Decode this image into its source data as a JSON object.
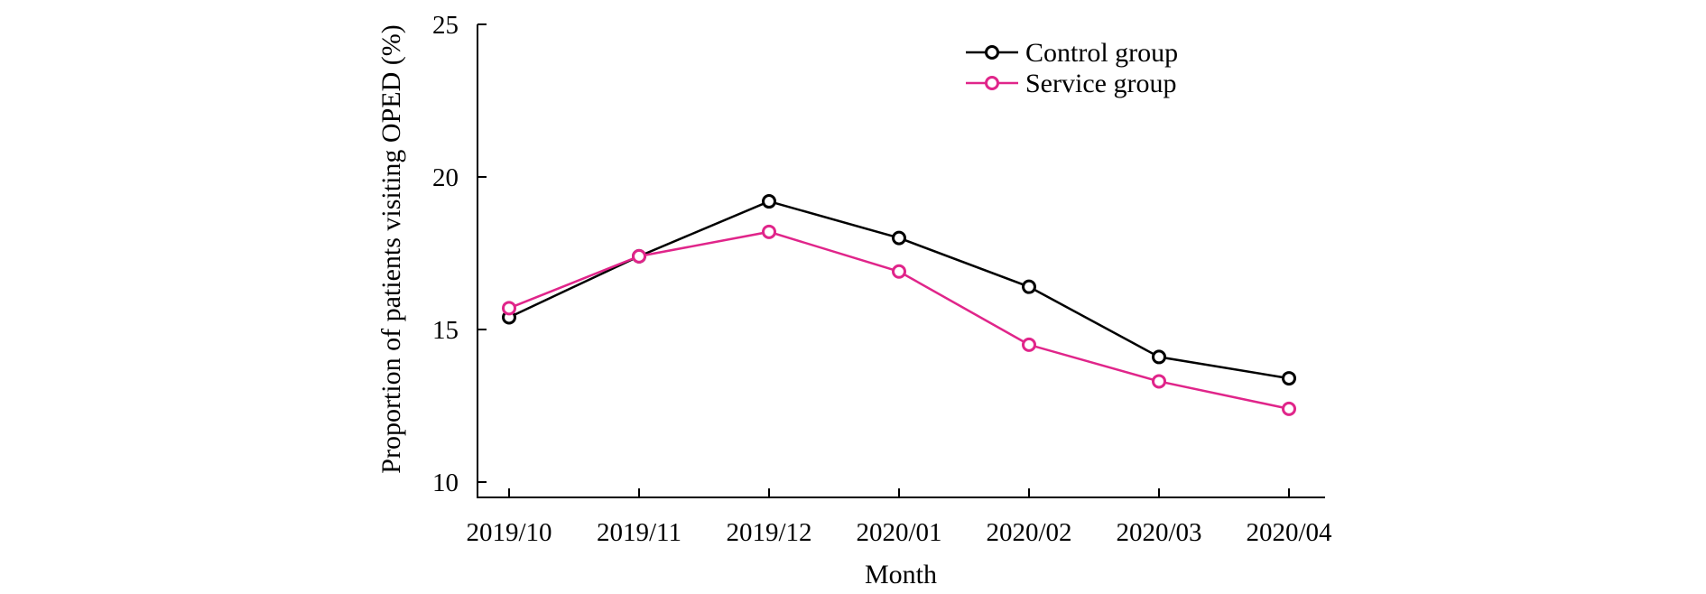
{
  "chart_data": {
    "type": "line",
    "title": "",
    "xlabel": "Month",
    "ylabel": "Proportion of patients visiting OPED (%)",
    "categories": [
      "2019/10",
      "2019/11",
      "2019/12",
      "2020/01",
      "2020/02",
      "2020/03",
      "2020/04"
    ],
    "ylim": [
      10,
      25
    ],
    "yticks": [
      10,
      15,
      20,
      25
    ],
    "grid": false,
    "legend_position": "top-right",
    "series": [
      {
        "name": "Control group",
        "color": "#000000",
        "marker": "open-circle",
        "values": [
          15.4,
          17.4,
          19.2,
          18.0,
          16.4,
          14.1,
          13.4
        ]
      },
      {
        "name": "Service group",
        "color": "#e0258a",
        "marker": "open-circle",
        "values": [
          15.7,
          17.4,
          18.2,
          16.9,
          14.5,
          13.3,
          12.4
        ]
      }
    ]
  }
}
